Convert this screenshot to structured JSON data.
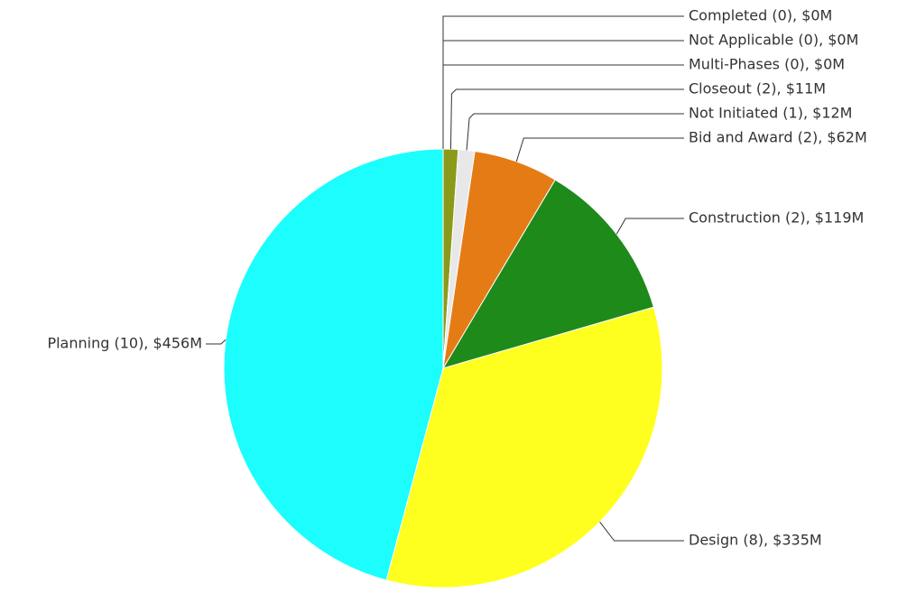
{
  "chart_data": {
    "type": "pie",
    "title": "",
    "start_angle_deg": 0,
    "direction": "clockwise",
    "legend": "none",
    "slices": [
      {
        "label": "Completed (0), $0M",
        "name": "Completed",
        "count": 0,
        "value": 0,
        "color": "#888888"
      },
      {
        "label": "Not Applicable (0), $0M",
        "name": "Not Applicable",
        "count": 0,
        "value": 0,
        "color": "#888888"
      },
      {
        "label": "Multi-Phases (0), $0M",
        "name": "Multi-Phases",
        "count": 0,
        "value": 0,
        "color": "#888888"
      },
      {
        "label": "Closeout (2), $11M",
        "name": "Closeout",
        "count": 2,
        "value": 11,
        "color": "#8b9a1b"
      },
      {
        "label": "Not Initiated (1), $12M",
        "name": "Not Initiated",
        "count": 1,
        "value": 12,
        "color": "#e8e8e8"
      },
      {
        "label": "Bid and Award (2), $62M",
        "name": "Bid and Award",
        "count": 2,
        "value": 62,
        "color": "#e57b15"
      },
      {
        "label": "Construction (2), $119M",
        "name": "Construction",
        "count": 2,
        "value": 119,
        "color": "#1e8a1a"
      },
      {
        "label": "Design (8), $335M",
        "name": "Design",
        "count": 8,
        "value": 335,
        "color": "#ffff1f"
      },
      {
        "label": "Planning (10), $456M",
        "name": "Planning",
        "count": 10,
        "value": 456,
        "color": "#1cfdfd"
      }
    ]
  }
}
